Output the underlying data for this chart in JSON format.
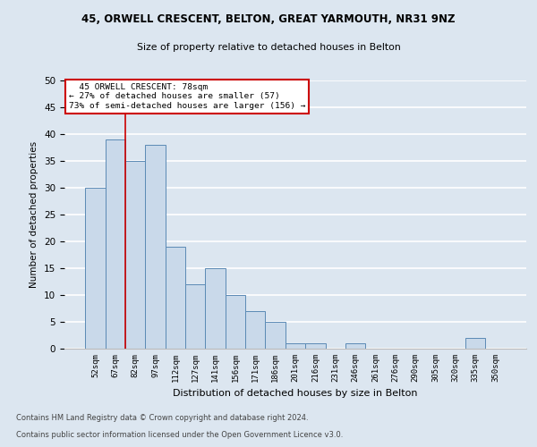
{
  "title_line1": "45, ORWELL CRESCENT, BELTON, GREAT YARMOUTH, NR31 9NZ",
  "title_line2": "Size of property relative to detached houses in Belton",
  "xlabel": "Distribution of detached houses by size in Belton",
  "ylabel": "Number of detached properties",
  "categories": [
    "52sqm",
    "67sqm",
    "82sqm",
    "97sqm",
    "112sqm",
    "127sqm",
    "141sqm",
    "156sqm",
    "171sqm",
    "186sqm",
    "201sqm",
    "216sqm",
    "231sqm",
    "246sqm",
    "261sqm",
    "276sqm",
    "290sqm",
    "305sqm",
    "320sqm",
    "335sqm",
    "350sqm"
  ],
  "values": [
    30,
    39,
    35,
    38,
    19,
    12,
    15,
    10,
    7,
    5,
    1,
    1,
    0,
    1,
    0,
    0,
    0,
    0,
    0,
    2,
    0
  ],
  "bar_color": "#c9d9ea",
  "bar_edge_color": "#5b8ab5",
  "annotation_line1": "45 ORWELL CRESCENT: 78sqm",
  "annotation_line2": "← 27% of detached houses are smaller (57)",
  "annotation_line3": "73% of semi-detached houses are larger (156) →",
  "annotation_box_color": "#ffffff",
  "annotation_box_edge": "#cc0000",
  "vline_color": "#cc0000",
  "vline_x": 1.5,
  "ylim": [
    0,
    50
  ],
  "yticks": [
    0,
    5,
    10,
    15,
    20,
    25,
    30,
    35,
    40,
    45,
    50
  ],
  "footer_line1": "Contains HM Land Registry data © Crown copyright and database right 2024.",
  "footer_line2": "Contains public sector information licensed under the Open Government Licence v3.0.",
  "background_color": "#dce6f0",
  "plot_bg_color": "#dce6f0",
  "grid_color": "#ffffff"
}
